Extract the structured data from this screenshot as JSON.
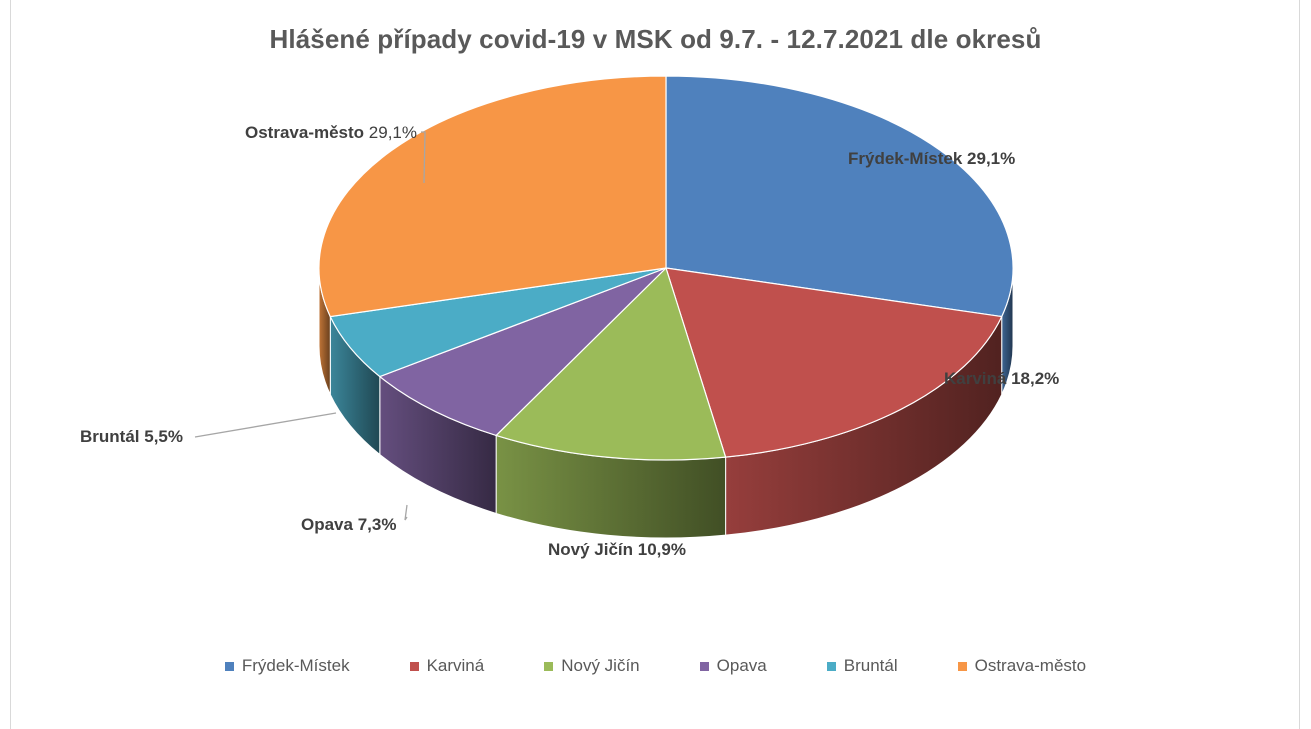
{
  "chart_data": {
    "type": "pie",
    "title": "Hlášené případy covid-19 v MSK od 9.7. - 12.7.2021 dle okresů",
    "series": [
      {
        "name": "Frýdek-Místek",
        "value": 29.1,
        "label": "29,1%",
        "color": "#4f81bd"
      },
      {
        "name": "Karviná",
        "value": 18.2,
        "label": "18,2%",
        "color": "#c0504d"
      },
      {
        "name": "Nový Jičín",
        "value": 10.9,
        "label": "10,9%",
        "color": "#9bbb59"
      },
      {
        "name": "Opava",
        "value": 7.3,
        "label": "7,3%",
        "color": "#8064a2"
      },
      {
        "name": "Bruntál",
        "value": 5.5,
        "label": "5,5%",
        "color": "#4bacc6"
      },
      {
        "name": "Ostrava-město",
        "value": 29.1,
        "label": "29,1%",
        "color": "#f79646"
      }
    ],
    "legend_position": "bottom",
    "style": "3d-pie"
  }
}
